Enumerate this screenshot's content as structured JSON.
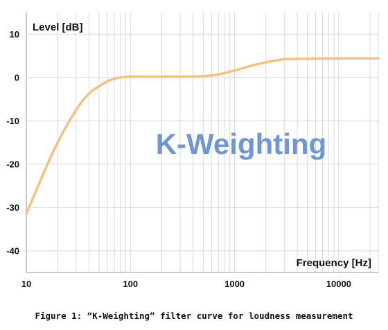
{
  "caption": "Figure 1: “K-Weighting” filter curve for loudness measurement",
  "colors": {
    "curve": "#f5c17f",
    "annotation": "#6f95d2",
    "grid": "#d9d9d9"
  },
  "chart_data": {
    "type": "line",
    "title": "",
    "xlabel": "Frequency [Hz]",
    "ylabel": "Level [dB]",
    "annotation": "K-Weighting",
    "xscale": "log",
    "xlim": [
      10,
      24000
    ],
    "ylim": [
      -45,
      15
    ],
    "x_ticks": [
      10,
      100,
      1000,
      10000
    ],
    "x_tick_labels": [
      "10",
      "100",
      "1000",
      "10000"
    ],
    "y_ticks": [
      10,
      0,
      -10,
      -20,
      -30,
      -40
    ],
    "y_tick_labels": [
      "10",
      "0",
      "-10",
      "-20",
      "-30",
      "-40"
    ],
    "grid": true,
    "series": [
      {
        "name": "",
        "x": [
          10,
          15,
          20,
          30,
          40,
          50,
          60,
          70,
          80,
          100,
          120,
          150,
          200,
          300,
          500,
          700,
          1000,
          1500,
          2000,
          3000,
          5000,
          10000,
          20000,
          24000
        ],
        "y": [
          -31.5,
          -21.5,
          -15,
          -7.5,
          -3.7,
          -2,
          -0.9,
          -0.3,
          0,
          0.2,
          0.2,
          0.2,
          0.2,
          0.2,
          0.3,
          0.7,
          1.6,
          2.8,
          3.5,
          4.2,
          4.3,
          4.4,
          4.4,
          4.4
        ]
      }
    ]
  }
}
